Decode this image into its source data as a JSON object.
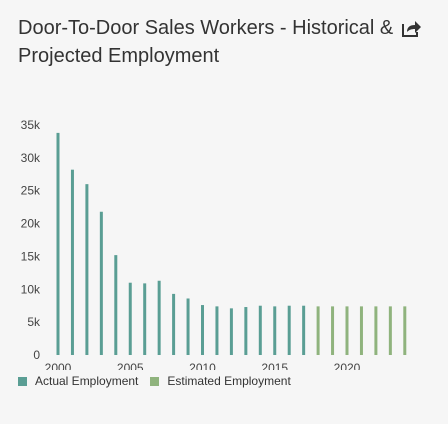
{
  "header": {
    "title": "Door-To-Door Sales Workers - Historical & Projected Employment",
    "share_icon": "share-arrow-icon"
  },
  "colors": {
    "actual": "#5a9e94",
    "estimated": "#8fb37d",
    "background": "#f6f6f6",
    "text": "#333333"
  },
  "legend": {
    "items": [
      {
        "label": "Actual Employment",
        "color": "#5a9e94"
      },
      {
        "label": "Estimated Employment",
        "color": "#8fb37d"
      }
    ]
  },
  "chart_data": {
    "type": "bar",
    "categories": [
      "2000",
      "2001",
      "2002",
      "2003",
      "2004",
      "2005",
      "2006",
      "2007",
      "2008",
      "2009",
      "2010",
      "2011",
      "2012",
      "2013",
      "2014",
      "2015",
      "2016",
      "2017",
      "2018",
      "2019",
      "2020",
      "2021",
      "2022",
      "2023",
      "2024"
    ],
    "series": [
      {
        "name": "Actual Employment",
        "values": [
          33800,
          28200,
          26000,
          21800,
          15200,
          11000,
          10900,
          11300,
          9300,
          8600,
          7600,
          7400,
          7100,
          7300,
          7500,
          7400,
          7500,
          7500,
          null,
          null,
          null,
          null,
          null,
          null,
          null
        ]
      },
      {
        "name": "Estimated Employment",
        "values": [
          null,
          null,
          null,
          null,
          null,
          null,
          null,
          null,
          null,
          null,
          null,
          null,
          null,
          null,
          null,
          null,
          null,
          null,
          7400,
          7400,
          7400,
          7400,
          7400,
          7400,
          7400
        ]
      }
    ],
    "y_ticks": [
      "0",
      "5k",
      "10k",
      "15k",
      "20k",
      "25k",
      "30k",
      "35k"
    ],
    "x_ticks": [
      "2000",
      "2005",
      "2010",
      "2015",
      "2020"
    ],
    "ylim": [
      0,
      35000
    ],
    "grid": false,
    "legend_position": "bottom-left"
  }
}
